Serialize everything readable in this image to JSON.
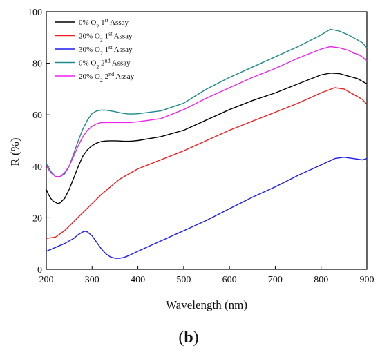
{
  "figure": {
    "panel_label_open": "(",
    "panel_label_letter": "b",
    "panel_label_close": ")"
  },
  "chart_data": {
    "type": "line",
    "title": "",
    "xlabel": "Wavelength (nm)",
    "ylabel": "R (%)",
    "xlim": [
      200,
      900
    ],
    "ylim": [
      0,
      100
    ],
    "xticks": [
      200,
      300,
      400,
      500,
      600,
      700,
      800,
      900
    ],
    "yticks": [
      0,
      20,
      40,
      60,
      80,
      100
    ],
    "grid": false,
    "legend_position": "top-left",
    "series": [
      {
        "name": "0% O2 1st Assay",
        "legend": {
          "pre": "0% O",
          "sub": "2",
          "mid": " 1",
          "sup": "st",
          "post": " Assay"
        },
        "color": "#000000",
        "x": [
          200,
          205,
          210,
          215,
          220,
          225,
          230,
          240,
          250,
          260,
          270,
          280,
          290,
          300,
          310,
          320,
          330,
          340,
          350,
          360,
          370,
          380,
          390,
          400,
          450,
          500,
          550,
          600,
          650,
          700,
          750,
          800,
          820,
          840,
          860,
          870,
          880,
          890,
          900
        ],
        "y": [
          31,
          29,
          27.5,
          26.5,
          26,
          25.5,
          25.8,
          27.5,
          31,
          35.5,
          40,
          44,
          46.5,
          48,
          49,
          49.6,
          49.8,
          49.9,
          49.9,
          49.8,
          49.7,
          49.7,
          49.8,
          50,
          51.5,
          54,
          58,
          62,
          65.5,
          68.5,
          72,
          75.5,
          76.2,
          76,
          75,
          74.5,
          74,
          73,
          72
        ]
      },
      {
        "name": "20% O2 1st Assay",
        "legend": {
          "pre": "20% O",
          "sub": "2",
          "mid": " 1",
          "sup": "st",
          "post": " Assay"
        },
        "color": "#ee1c1c",
        "x": [
          200,
          220,
          240,
          260,
          280,
          300,
          320,
          340,
          360,
          380,
          400,
          450,
          500,
          550,
          600,
          650,
          700,
          750,
          800,
          830,
          850,
          870,
          890,
          900
        ],
        "y": [
          12,
          12.5,
          15,
          18.5,
          22,
          25.5,
          29,
          32,
          35,
          37,
          39,
          42.5,
          46,
          50,
          54,
          57.5,
          61,
          64.5,
          68.5,
          70.5,
          70,
          68,
          66,
          64
        ]
      },
      {
        "name": "30% O2 1st Assay",
        "legend": {
          "pre": "30% O",
          "sub": "2",
          "mid": " 1",
          "sup": "st",
          "post": " Assay"
        },
        "color": "#1b1bf0",
        "x": [
          200,
          220,
          240,
          260,
          270,
          280,
          285,
          290,
          300,
          310,
          320,
          330,
          340,
          350,
          360,
          370,
          380,
          400,
          450,
          500,
          550,
          600,
          650,
          700,
          750,
          800,
          830,
          850,
          870,
          890,
          900
        ],
        "y": [
          7,
          8.5,
          10,
          12,
          13.5,
          14.5,
          14.8,
          14.5,
          13,
          10.5,
          8,
          6,
          4.8,
          4.3,
          4.3,
          4.6,
          5.3,
          7,
          11,
          15,
          19,
          23.5,
          28,
          32,
          36.5,
          40.5,
          43,
          43.5,
          43,
          42.5,
          43
        ]
      },
      {
        "name": "0% O2 2nd Assay",
        "legend": {
          "pre": "0% O",
          "sub": "2",
          "mid": "  2",
          "sup": "nd",
          "post": " Assay"
        },
        "color": "#1f8a8a",
        "x": [
          200,
          210,
          220,
          230,
          240,
          250,
          260,
          270,
          280,
          290,
          300,
          310,
          320,
          330,
          340,
          350,
          360,
          370,
          380,
          390,
          400,
          450,
          500,
          550,
          600,
          650,
          700,
          750,
          800,
          820,
          840,
          860,
          870,
          880,
          890,
          900
        ],
        "y": [
          41,
          38,
          36,
          36,
          37,
          40,
          45,
          50,
          54.5,
          58,
          60.5,
          61.5,
          61.8,
          61.8,
          61.5,
          61.2,
          60.8,
          60.5,
          60.3,
          60.3,
          60.4,
          61.5,
          64.5,
          70,
          74.5,
          78.5,
          82.5,
          86.5,
          91,
          93.2,
          92.5,
          91,
          90,
          89,
          88,
          86
        ]
      },
      {
        "name": "20% O2 2nd Assay",
        "legend": {
          "pre": "20% O",
          "sub": "2",
          "mid": " 2",
          "sup": "nd",
          "post": " Assay"
        },
        "color": "#ee22ee",
        "x": [
          200,
          210,
          220,
          230,
          240,
          250,
          260,
          270,
          280,
          290,
          300,
          310,
          320,
          330,
          340,
          350,
          360,
          370,
          380,
          390,
          400,
          450,
          500,
          550,
          600,
          650,
          700,
          750,
          800,
          820,
          840,
          860,
          870,
          880,
          890,
          900
        ],
        "y": [
          40,
          37.5,
          36,
          36,
          37.5,
          40,
          44,
          48,
          51.5,
          54,
          55.5,
          56.5,
          57,
          57,
          57,
          57,
          57,
          57,
          57,
          57.1,
          57.3,
          58.5,
          62,
          66.5,
          70.5,
          74.5,
          78,
          82,
          85.5,
          86.5,
          86,
          85,
          84,
          83.5,
          82.5,
          81
        ]
      }
    ]
  }
}
